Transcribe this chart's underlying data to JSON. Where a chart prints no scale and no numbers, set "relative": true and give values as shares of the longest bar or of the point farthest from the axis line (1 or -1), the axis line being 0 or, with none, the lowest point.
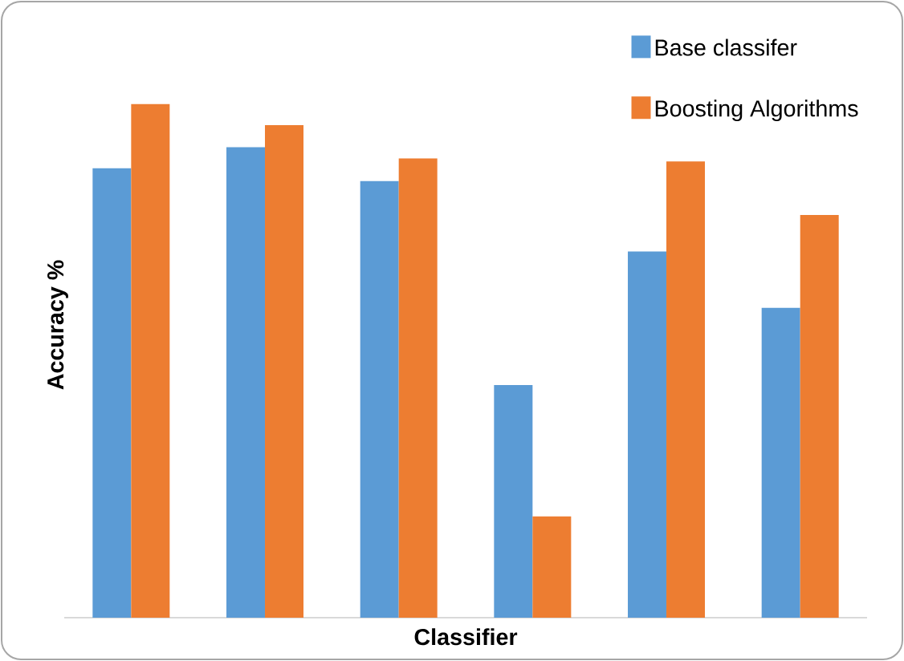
{
  "chart_data": {
    "type": "bar",
    "xlabel": "Classifier",
    "ylabel": "Accuracy %",
    "relative": true,
    "categories": [
      null,
      null,
      null,
      null,
      null,
      null
    ],
    "series": [
      {
        "name": "Base classifer",
        "color": "#5b9bd5",
        "values": [
          0.875,
          0.916,
          0.85,
          0.453,
          0.713,
          0.603
        ]
      },
      {
        "name": "Boosting Algorithms",
        "color": "#ed7d31",
        "values": [
          1,
          0.959,
          0.894,
          0.197,
          0.888,
          0.784
        ]
      }
    ],
    "legend": "top right"
  }
}
